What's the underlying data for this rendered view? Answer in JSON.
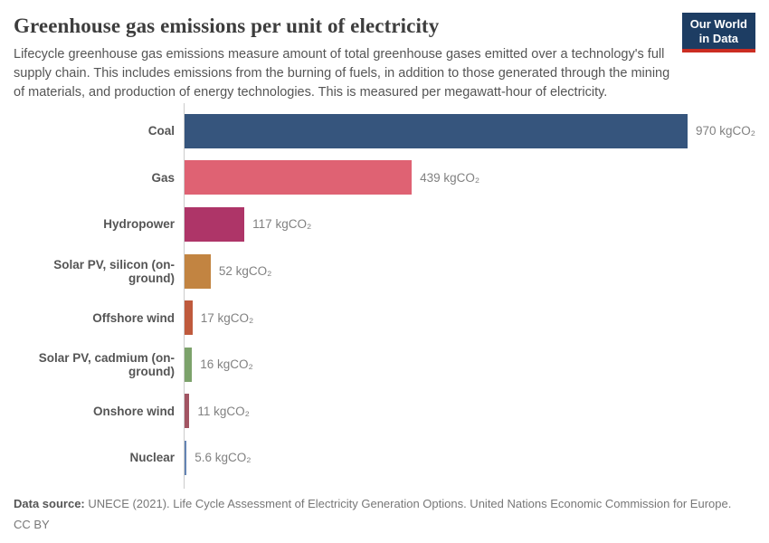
{
  "header": {
    "title": "Greenhouse gas emissions per unit of electricity",
    "subtitle": "Lifecycle greenhouse gas emissions measure amount of total greenhouse gases emitted over a technology's full supply chain. This includes emissions from the burning of fuels, in addition to those generated through the mining of materials, and production of energy technologies. This is measured per megawatt-hour of electricity.",
    "logo": {
      "line1": "Our World",
      "line2": "in Data",
      "bg_color": "#1d3d63",
      "accent_color": "#cb2d22"
    }
  },
  "chart_data": {
    "type": "bar",
    "orientation": "horizontal",
    "title": "Greenhouse gas emissions per unit of electricity",
    "xlabel": "",
    "ylabel": "",
    "unit": "kgCO₂ per megawatt-hour",
    "xlim": [
      0,
      970
    ],
    "grid": false,
    "legend": "none",
    "categories": [
      "Coal",
      "Gas",
      "Hydropower",
      "Solar PV, silicon (on-ground)",
      "Offshore wind",
      "Solar PV, cadmium (on-ground)",
      "Onshore wind",
      "Nuclear"
    ],
    "values": [
      970,
      439,
      117,
      52,
      17,
      16,
      11,
      5.6
    ],
    "value_labels": [
      "970 kgCO₂",
      "439 kgCO₂",
      "117 kgCO₂",
      "52 kgCO₂",
      "17 kgCO₂",
      "16 kgCO₂",
      "11 kgCO₂",
      "5.6 kgCO₂"
    ],
    "bar_colors": [
      "#36557d",
      "#df6273",
      "#ae3568",
      "#c28441",
      "#bf5a3d",
      "#7ca26b",
      "#a25563",
      "#6484b4"
    ],
    "axis_color": "#cccccc"
  },
  "footer": {
    "source_label": "Data source:",
    "source_text": " UNECE (2021). Life Cycle Assessment of Electricity Generation Options. United Nations Economic Commission for Europe.",
    "license": "CC BY"
  }
}
